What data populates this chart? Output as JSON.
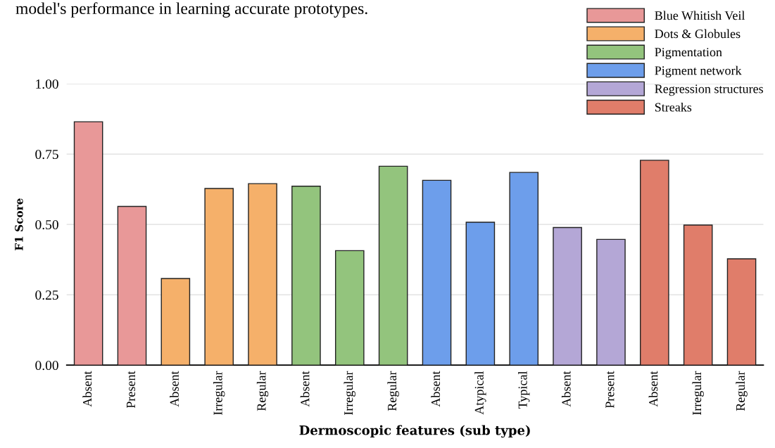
{
  "chart_data": {
    "type": "bar",
    "categories": [
      "Absent",
      "Present",
      "Absent",
      "Irregular",
      "Regular",
      "Absent",
      "Irregular",
      "Regular",
      "Absent",
      "Atypical",
      "Typical",
      "Absent",
      "Present",
      "Absent",
      "Irregular",
      "Regular"
    ],
    "series": [
      {
        "name": "Blue Whitish Veil",
        "color": "#e89898",
        "values": [
          0.865,
          0.564,
          null,
          null,
          null,
          null,
          null,
          null,
          null,
          null,
          null,
          null,
          null,
          null,
          null,
          null
        ]
      },
      {
        "name": "Dots & Globules",
        "color": "#f5b06a",
        "values": [
          null,
          null,
          0.308,
          0.628,
          0.645,
          null,
          null,
          null,
          null,
          null,
          null,
          null,
          null,
          null,
          null,
          null
        ]
      },
      {
        "name": "Pigmentation",
        "color": "#93c47d",
        "values": [
          null,
          null,
          null,
          null,
          null,
          0.636,
          0.407,
          0.707,
          null,
          null,
          null,
          null,
          null,
          null,
          null,
          null
        ]
      },
      {
        "name": "Pigment network",
        "color": "#6d9eeb",
        "values": [
          null,
          null,
          null,
          null,
          null,
          null,
          null,
          null,
          0.657,
          0.508,
          0.685,
          null,
          null,
          null,
          null,
          null
        ]
      },
      {
        "name": "Regression structures",
        "color": "#b4a7d6",
        "values": [
          null,
          null,
          null,
          null,
          null,
          null,
          null,
          null,
          null,
          null,
          null,
          0.489,
          0.447,
          null,
          null,
          null
        ]
      },
      {
        "name": "Streaks",
        "color": "#e07d6a",
        "values": [
          null,
          null,
          null,
          null,
          null,
          null,
          null,
          null,
          null,
          null,
          null,
          null,
          null,
          0.728,
          0.498,
          0.378
        ]
      }
    ],
    "xlabel": "Dermoscopic features (sub type)",
    "ylabel": "F1 Score",
    "ylim": [
      0,
      1.0
    ],
    "yticks": [
      {
        "value": 0,
        "label": "0.00"
      },
      {
        "value": 0.25,
        "label": "0.25"
      },
      {
        "value": 0.5,
        "label": "0.50"
      },
      {
        "value": 0.75,
        "label": "0.75"
      },
      {
        "value": 1.0,
        "label": "1.00"
      }
    ],
    "grid": "y",
    "legend": "top right",
    "annotations": [
      "model's performance in learning accurate prototypes."
    ]
  }
}
